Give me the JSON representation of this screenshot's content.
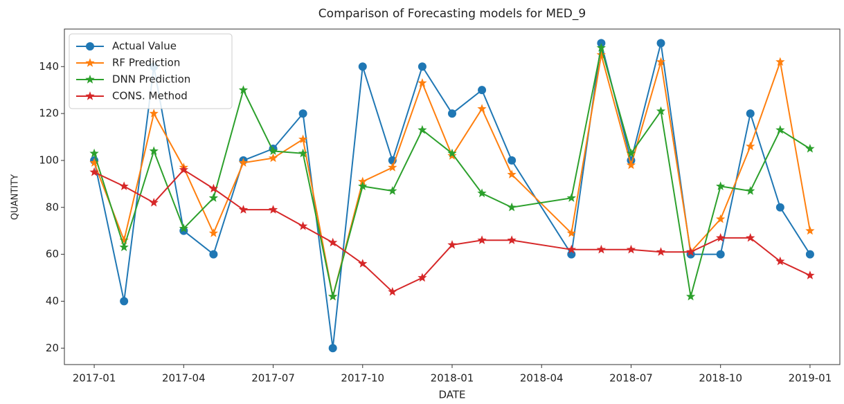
{
  "chart_data": {
    "type": "line",
    "title": "Comparison of Forecasting models for MED_9",
    "xlabel": "DATE",
    "ylabel": "QUANTITY",
    "x": [
      "2017-01",
      "2017-02",
      "2017-03",
      "2017-04",
      "2017-05",
      "2017-06",
      "2017-07",
      "2017-08",
      "2017-09",
      "2017-10",
      "2017-11",
      "2017-12",
      "2018-01",
      "2018-02",
      "2018-03",
      "2018-05",
      "2018-06",
      "2018-07",
      "2018-08",
      "2018-09",
      "2018-10",
      "2018-11",
      "2018-12",
      "2019-01"
    ],
    "series": [
      {
        "name": "Actual Value",
        "color": "#1f77b4",
        "marker": "circle",
        "values": [
          100,
          40,
          140,
          70,
          60,
          100,
          105,
          120,
          20,
          140,
          100,
          140,
          120,
          130,
          100,
          60,
          150,
          100,
          150,
          60,
          60,
          120,
          80,
          60
        ]
      },
      {
        "name": "RF Prediction",
        "color": "#ff7f0e",
        "marker": "star",
        "values": [
          99,
          66,
          120,
          97,
          69,
          99,
          101,
          109,
          42,
          91,
          97,
          133,
          102,
          122,
          94,
          69,
          145,
          98,
          142,
          61,
          75,
          106,
          142,
          70
        ]
      },
      {
        "name": "DNN Prediction",
        "color": "#2ca02c",
        "marker": "star",
        "values": [
          103,
          63,
          104,
          71,
          84,
          130,
          104,
          103,
          42,
          89,
          87,
          113,
          103,
          86,
          80,
          84,
          148,
          103,
          121,
          42,
          89,
          87,
          113,
          105
        ]
      },
      {
        "name": "CONS. Method",
        "color": "#d62728",
        "marker": "star",
        "values": [
          95,
          89,
          82,
          96,
          88,
          79,
          79,
          72,
          65,
          56,
          44,
          50,
          64,
          66,
          66,
          62,
          62,
          62,
          61,
          61,
          67,
          67,
          57,
          51
        ]
      }
    ],
    "xlim": [
      "2016-12",
      "2019-02"
    ],
    "xticks": [
      "2017-01",
      "2017-04",
      "2017-07",
      "2017-10",
      "2018-01",
      "2018-04",
      "2018-07",
      "2018-10",
      "2019-01"
    ],
    "ylim": [
      13,
      156
    ],
    "yticks": [
      20,
      40,
      60,
      80,
      100,
      120,
      140
    ],
    "legend": "upper left"
  }
}
